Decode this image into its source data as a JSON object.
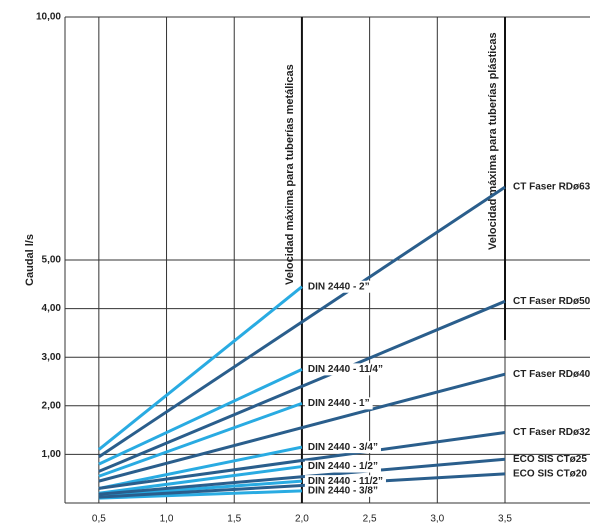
{
  "chart_data": {
    "type": "line",
    "y_label": "Caudal l/s",
    "xlim": [
      0.25,
      3.5
    ],
    "ylim": [
      0,
      10
    ],
    "xticks": [
      {
        "value": 0.5,
        "label": "0,5"
      },
      {
        "value": 1.0,
        "label": "1,0"
      },
      {
        "value": 1.5,
        "label": "1,5"
      },
      {
        "value": 2.0,
        "label": "2,0"
      },
      {
        "value": 2.5,
        "label": "2,5"
      },
      {
        "value": 3.0,
        "label": "3,0"
      },
      {
        "value": 3.5,
        "label": "3,5"
      }
    ],
    "yticks": [
      {
        "value": 1,
        "label": "1,00"
      },
      {
        "value": 2,
        "label": "2,00"
      },
      {
        "value": 3,
        "label": "3,00"
      },
      {
        "value": 4,
        "label": "4,00"
      },
      {
        "value": 5,
        "label": "5,00"
      },
      {
        "value": 10,
        "label": "10,00"
      }
    ],
    "grid": true,
    "annotations": [
      {
        "text": "Velocidad máxima para tuberías metálicas",
        "x": 2.0
      },
      {
        "text": "Velocidad máxima para tuberías plásticas",
        "x": 3.5
      }
    ],
    "series": [
      {
        "name": "DIN 2440 - 2”",
        "color": "#29abe2",
        "x": [
          0.5,
          2.0
        ],
        "values": [
          1.1,
          4.45
        ]
      },
      {
        "name": "DIN 2440 - 11/4”",
        "color": "#29abe2",
        "x": [
          0.5,
          2.0
        ],
        "values": [
          0.8,
          2.75
        ]
      },
      {
        "name": "DIN 2440 - 1”",
        "color": "#29abe2",
        "x": [
          0.5,
          2.0
        ],
        "values": [
          0.55,
          2.05
        ]
      },
      {
        "name": "DIN 2440 - 3/4”",
        "color": "#29abe2",
        "x": [
          0.5,
          2.0
        ],
        "values": [
          0.3,
          1.15
        ]
      },
      {
        "name": "DIN 2440 - 1/2”",
        "color": "#29abe2",
        "x": [
          0.5,
          2.0
        ],
        "values": [
          0.2,
          0.75
        ]
      },
      {
        "name": "DIN 2440 - 11/2”",
        "color": "#29abe2",
        "x": [
          0.5,
          2.0
        ],
        "values": [
          0.15,
          0.45
        ]
      },
      {
        "name": "DIN 2440 - 3/8”",
        "color": "#29abe2",
        "x": [
          0.5,
          2.0
        ],
        "values": [
          0.1,
          0.25
        ]
      },
      {
        "name": "CT Faser RDø63",
        "color": "#2a5e8c",
        "x": [
          0.5,
          3.5
        ],
        "values": [
          0.95,
          6.5
        ]
      },
      {
        "name": "CT Faser RDø50",
        "color": "#2a5e8c",
        "x": [
          0.5,
          3.5
        ],
        "values": [
          0.65,
          4.15
        ]
      },
      {
        "name": "CT Faser RDø40",
        "color": "#2a5e8c",
        "x": [
          0.5,
          3.5
        ],
        "values": [
          0.45,
          2.65
        ]
      },
      {
        "name": "CT Faser RDø32",
        "color": "#2a5e8c",
        "x": [
          0.5,
          3.5
        ],
        "values": [
          0.3,
          1.45
        ]
      },
      {
        "name": "ECO SIS CTø25",
        "color": "#2a5e8c",
        "x": [
          0.5,
          3.5
        ],
        "values": [
          0.18,
          0.9
        ]
      },
      {
        "name": "ECO SIS CTø20",
        "color": "#2a5e8c",
        "x": [
          0.5,
          3.5
        ],
        "values": [
          0.12,
          0.6
        ]
      }
    ]
  }
}
